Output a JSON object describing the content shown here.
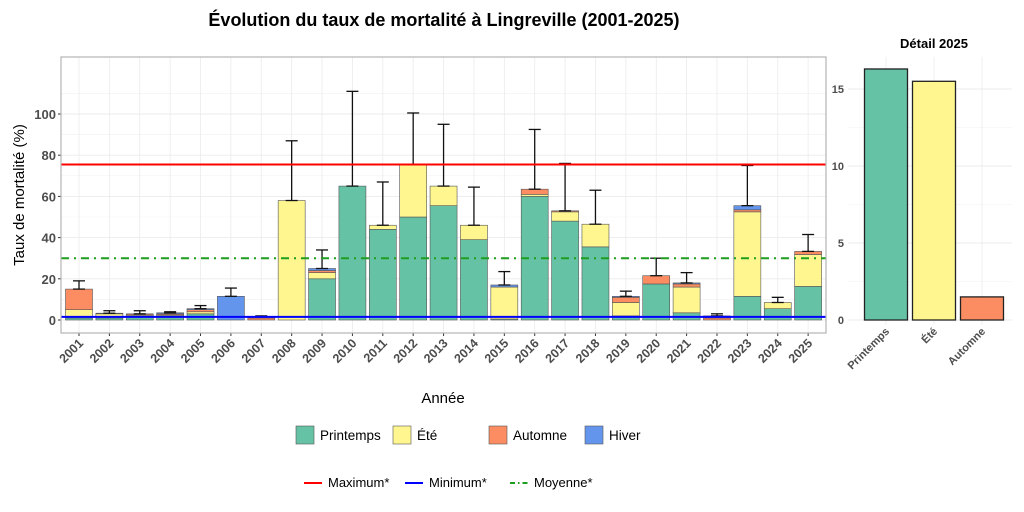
{
  "chart_data": [
    {
      "type": "bar",
      "stacked": true,
      "title": "Évolution du taux de mortalité à Lingreville (2001-2025)",
      "xlabel": "Année",
      "ylabel": "Taux de mortalité (%)",
      "ylim": [
        -6,
        128
      ],
      "yticks": [
        0,
        20,
        40,
        60,
        80,
        100
      ],
      "grid": true,
      "categories": [
        "2001",
        "2002",
        "2003",
        "2004",
        "2005",
        "2006",
        "2007",
        "2008",
        "2009",
        "2010",
        "2011",
        "2012",
        "2013",
        "2014",
        "2015",
        "2016",
        "2017",
        "2018",
        "2019",
        "2020",
        "2021",
        "2022",
        "2023",
        "2024",
        "2025"
      ],
      "series": [
        {
          "name": "Printemps",
          "color": "#66C2A5",
          "values": [
            1,
            1,
            2,
            2,
            3,
            0,
            0,
            0,
            20,
            65,
            44,
            50,
            55.5,
            39,
            0.5,
            60,
            48,
            35.5,
            2,
            17.5,
            3.5,
            0,
            11.5,
            5.5,
            16.3
          ]
        },
        {
          "name": "Été",
          "color": "#FFF68F",
          "values": [
            4,
            2,
            0.5,
            0.5,
            1,
            0,
            0,
            58,
            3,
            0,
            2,
            25.5,
            9.5,
            7,
            15.5,
            1,
            4.5,
            11,
            6.5,
            0,
            12.5,
            0,
            41,
            3,
            15.5
          ]
        },
        {
          "name": "Automne",
          "color": "#FC8D62",
          "values": [
            10,
            0.3,
            0.5,
            0.5,
            1,
            0,
            1,
            0,
            1,
            0,
            0,
            0,
            0,
            0,
            0,
            2.5,
            0.5,
            0,
            2.5,
            4,
            1.5,
            1,
            1,
            0,
            1.5
          ]
        },
        {
          "name": "Hiver",
          "color": "#6495ED",
          "values": [
            0,
            0,
            0,
            0.5,
            0.5,
            11.5,
            0.5,
            0,
            1,
            0,
            0,
            0,
            0,
            0,
            1,
            0,
            0,
            0,
            0.5,
            0,
            0.5,
            1,
            2,
            0,
            0
          ]
        }
      ],
      "error_upper": [
        19,
        4.5,
        4.5,
        4,
        7,
        15.5,
        2,
        87,
        34,
        111,
        67,
        100.5,
        95,
        64.5,
        23.5,
        92.5,
        76,
        63,
        14,
        30,
        23,
        3,
        75,
        11,
        41.5
      ],
      "reference_lines": [
        {
          "name": "Maximum*",
          "value": 75.5,
          "color": "#FF0000",
          "style": "solid"
        },
        {
          "name": "Minimum*",
          "value": 1.5,
          "color": "#0000FF",
          "style": "solid"
        },
        {
          "name": "Moyenne*",
          "value": 30,
          "color": "#1E9E1E",
          "style": "dotdash"
        }
      ],
      "legend": "bottom"
    },
    {
      "type": "bar",
      "title": "Détail 2025",
      "categories": [
        "Printemps",
        "Été",
        "Automne"
      ],
      "values": [
        16.3,
        15.5,
        1.5
      ],
      "colors": [
        "#66C2A5",
        "#FFF68F",
        "#FC8D62"
      ],
      "ylim": [
        0,
        16.8
      ],
      "yticks": [
        0,
        5,
        10,
        15
      ],
      "grid": true
    }
  ]
}
